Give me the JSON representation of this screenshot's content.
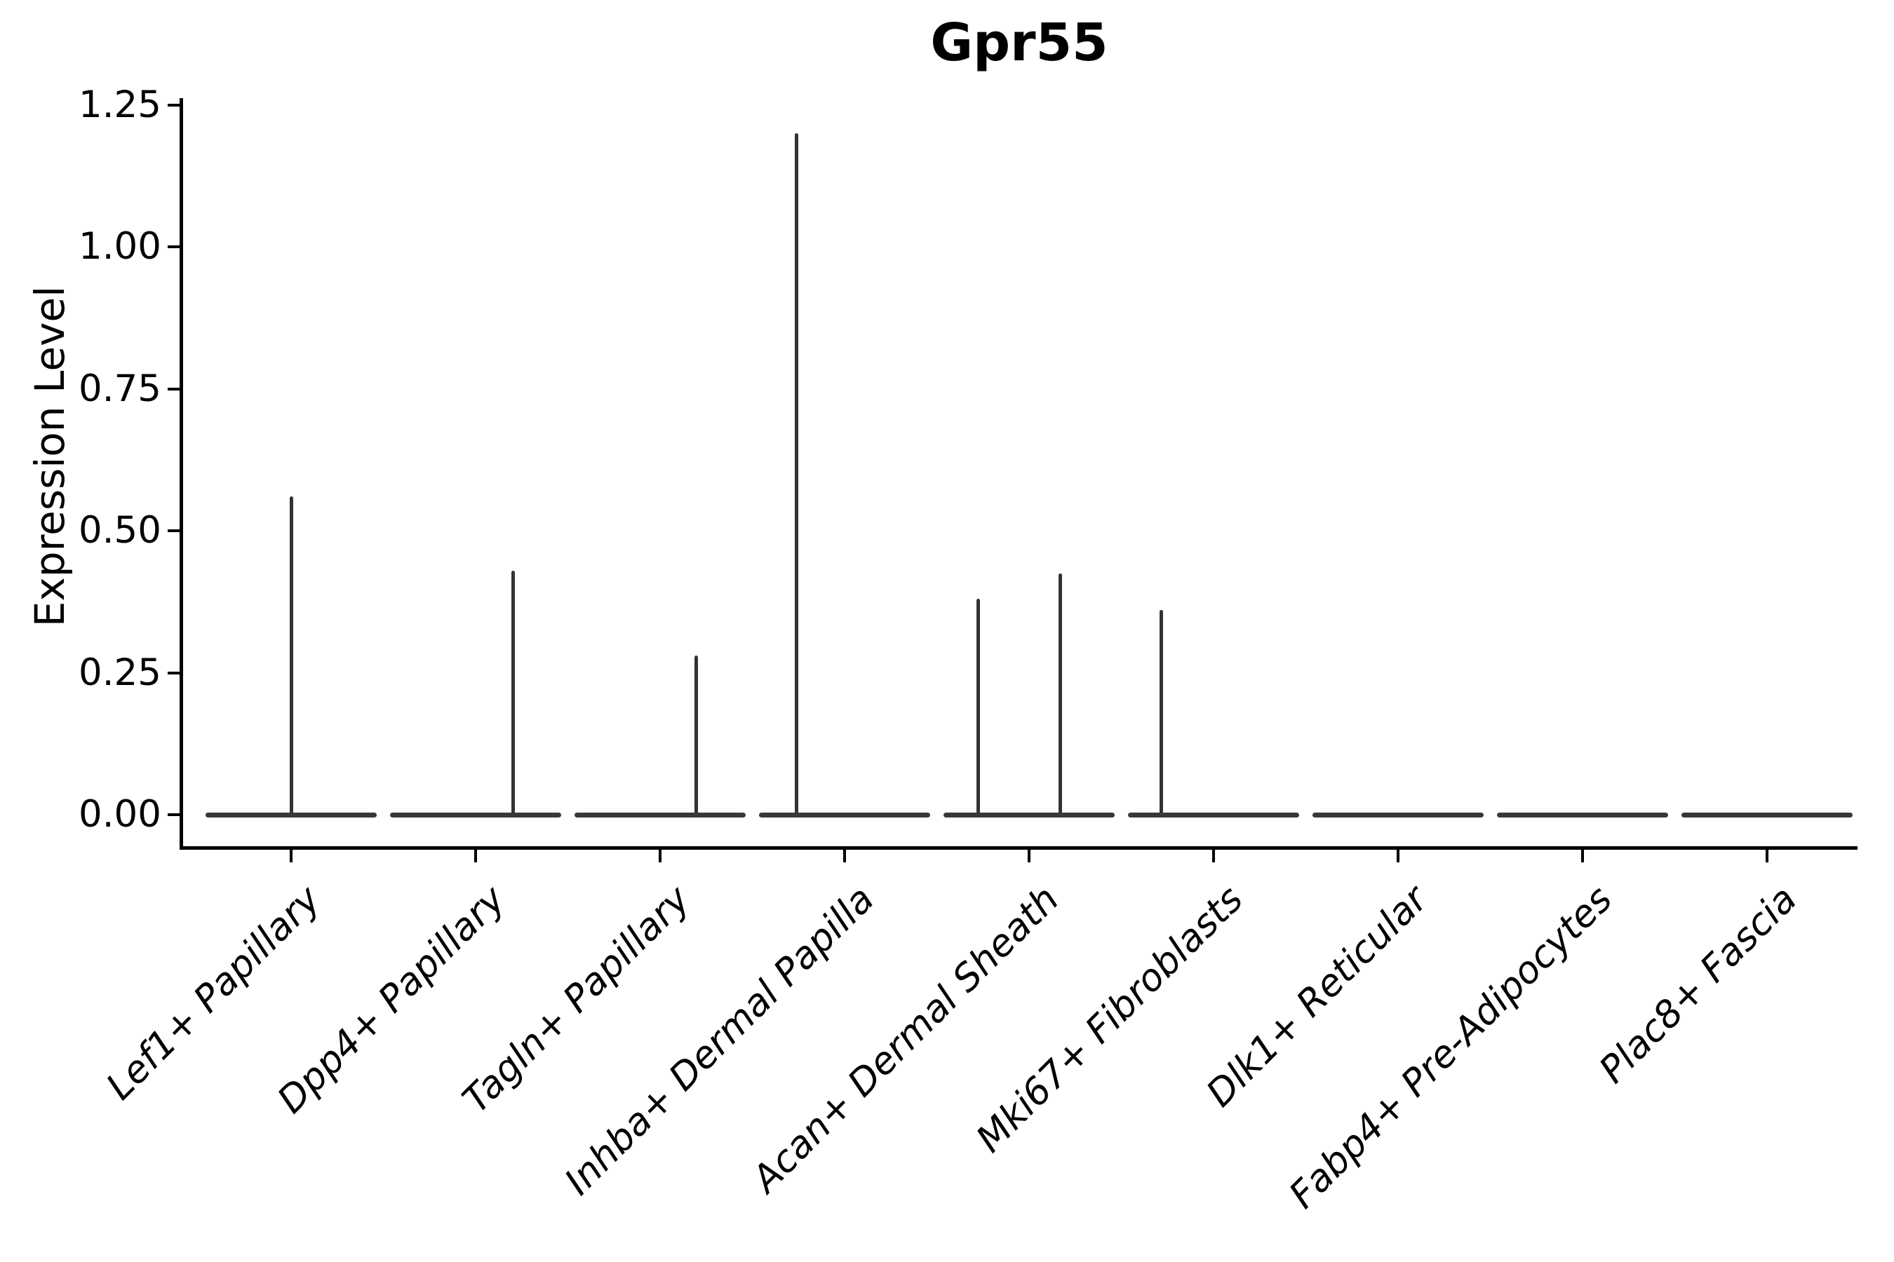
{
  "title": "Gpr55",
  "y_axis_label": "Expression Level",
  "colors": {
    "background": "#ffffff",
    "axis": "#000000",
    "text": "#000000",
    "violin": "#333333"
  },
  "chart_data": {
    "type": "violin",
    "title": "Gpr55",
    "xlabel": "",
    "ylabel": "Expression Level",
    "ylim": [
      0,
      1.26
    ],
    "yticks": [
      0.0,
      0.25,
      0.5,
      0.75,
      1.0,
      1.25
    ],
    "ytick_labels": [
      "0.00",
      "0.25",
      "0.50",
      "0.75",
      "1.00",
      "1.25"
    ],
    "grid": false,
    "legend": false,
    "x_labels_rotation_deg": 45,
    "categories": [
      "Lef1+ Papillary",
      "Dpp4+ Papillary",
      "Tagln+ Papillary",
      "Inhba+ Dermal Papilla",
      "Acan+ Dermal Sheath",
      "Mki67+ Fibroblasts",
      "Dlk1+ Reticular",
      "Fabp4+ Pre-Adipocytes",
      "Plac8+ Fascia"
    ],
    "violins": [
      {
        "category": "Lef1+ Papillary",
        "baseline_value": 0,
        "max_expression": 0.56,
        "spikes": [
          {
            "value": 0.56,
            "offset_frac": 0.0
          }
        ]
      },
      {
        "category": "Dpp4+ Papillary",
        "baseline_value": 0,
        "max_expression": 0.43,
        "spikes": [
          {
            "value": 0.43,
            "offset_frac": 0.205
          }
        ]
      },
      {
        "category": "Tagln+ Papillary",
        "baseline_value": 0,
        "max_expression": 0.28,
        "spikes": [
          {
            "value": 0.28,
            "offset_frac": 0.195
          }
        ]
      },
      {
        "category": "Inhba+ Dermal Papilla",
        "baseline_value": 0,
        "max_expression": 1.2,
        "spikes": [
          {
            "value": 1.2,
            "offset_frac": -0.26
          }
        ]
      },
      {
        "category": "Acan+ Dermal Sheath",
        "baseline_value": 0,
        "max_expression": 0.425,
        "spikes": [
          {
            "value": 0.38,
            "offset_frac": -0.275
          },
          {
            "value": 0.425,
            "offset_frac": 0.17
          }
        ]
      },
      {
        "category": "Mki67+ Fibroblasts",
        "baseline_value": 0,
        "max_expression": 0.36,
        "spikes": [
          {
            "value": 0.36,
            "offset_frac": -0.285
          }
        ]
      },
      {
        "category": "Dlk1+ Reticular",
        "baseline_value": 0,
        "max_expression": 0,
        "spikes": []
      },
      {
        "category": "Fabp4+ Pre-Adipocytes",
        "baseline_value": 0,
        "max_expression": 0,
        "spikes": []
      },
      {
        "category": "Plac8+ Fascia",
        "baseline_value": 0,
        "max_expression": 0,
        "spikes": []
      }
    ]
  }
}
